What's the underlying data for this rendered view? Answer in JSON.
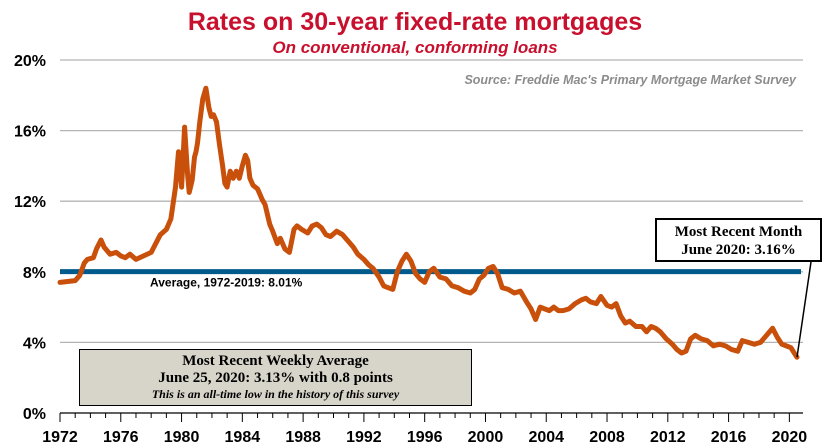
{
  "title": "Rates on 30-year fixed-rate mortgages",
  "subtitle": "On conventional, conforming loans",
  "source": "Source: Freddie Mac's Primary Mortgage Market Survey",
  "average_label": "Average, 1972-2019: 8.01%",
  "weekly_box": {
    "line1": "Most Recent Weekly Average",
    "line2": "June 25, 2020: 3.13% with 0.8 points",
    "line3": "This is an all-time low in the history of this survey"
  },
  "month_box": {
    "line1": "Most Recent Month",
    "line2": "June 2020: 3.16%"
  },
  "colors": {
    "series": "#c9500a",
    "average": "#005b8c",
    "title": "#c8102e",
    "grid": "#b4b4b4"
  },
  "chart_data": {
    "type": "line",
    "title": "Rates on 30-year fixed-rate mortgages",
    "subtitle": "On conventional, conforming loans",
    "xlabel": "",
    "ylabel": "",
    "xlim": [
      1972,
      2020.7
    ],
    "ylim": [
      0,
      20
    ],
    "x_ticks": [
      1972,
      1976,
      1980,
      1984,
      1988,
      1992,
      1996,
      2000,
      2004,
      2008,
      2012,
      2016,
      2020
    ],
    "x_tick_labels": [
      "1972",
      "1976",
      "1980",
      "1984",
      "1988",
      "1992",
      "1996",
      "2000",
      "2004",
      "2008",
      "2012",
      "2016",
      "2020"
    ],
    "y_ticks": [
      0,
      4,
      8,
      12,
      16,
      20
    ],
    "y_tick_labels": [
      "0%",
      "4%",
      "8%",
      "12%",
      "16%",
      "20%"
    ],
    "grid": "horizontal",
    "average": {
      "label": "Average, 1972-2019: 8.01%",
      "value": 8.01
    },
    "series": [
      {
        "x": [
          1972.0,
          1972.5,
          1973.0,
          1973.3,
          1973.6,
          1973.8,
          1974.2,
          1974.4,
          1974.7,
          1974.9,
          1975.3,
          1975.7,
          1976.0,
          1976.3,
          1976.6,
          1977.0,
          1977.5,
          1978.0,
          1978.3,
          1978.6,
          1979.0,
          1979.3,
          1979.6,
          1979.8,
          1980.0,
          1980.2,
          1980.4,
          1980.5,
          1980.7,
          1980.85,
          1980.95,
          1981.05,
          1981.2,
          1981.4,
          1981.6,
          1981.8,
          1981.95,
          1982.1,
          1982.3,
          1982.5,
          1982.7,
          1982.85,
          1983.0,
          1983.2,
          1983.4,
          1983.6,
          1983.8,
          1984.0,
          1984.2,
          1984.35,
          1984.5,
          1984.7,
          1985.0,
          1985.3,
          1985.5,
          1985.8,
          1986.0,
          1986.3,
          1986.5,
          1986.8,
          1987.1,
          1987.4,
          1987.6,
          1987.9,
          1988.3,
          1988.6,
          1988.9,
          1989.2,
          1989.5,
          1989.8,
          1990.2,
          1990.6,
          1991.0,
          1991.3,
          1991.6,
          1992.0,
          1992.3,
          1992.6,
          1993.0,
          1993.3,
          1993.6,
          1993.9,
          1994.2,
          1994.5,
          1994.8,
          1995.1,
          1995.4,
          1995.7,
          1996.0,
          1996.3,
          1996.6,
          1997.0,
          1997.4,
          1997.8,
          1998.2,
          1998.6,
          1999.0,
          1999.3,
          1999.6,
          1999.9,
          2000.2,
          2000.5,
          2000.8,
          2001.1,
          2001.5,
          2001.9,
          2002.3,
          2002.7,
          2003.0,
          2003.3,
          2003.6,
          2003.9,
          2004.2,
          2004.5,
          2004.8,
          2005.1,
          2005.5,
          2005.9,
          2006.3,
          2006.6,
          2006.9,
          2007.3,
          2007.6,
          2008.0,
          2008.3,
          2008.6,
          2008.9,
          2009.2,
          2009.5,
          2009.9,
          2010.3,
          2010.6,
          2010.9,
          2011.2,
          2011.5,
          2011.9,
          2012.3,
          2012.6,
          2012.9,
          2013.2,
          2013.5,
          2013.8,
          2014.2,
          2014.6,
          2015.0,
          2015.4,
          2015.8,
          2016.2,
          2016.6,
          2016.9,
          2017.3,
          2017.7,
          2018.1,
          2018.5,
          2018.9,
          2019.2,
          2019.5,
          2019.8,
          2020.1,
          2020.4,
          2020.5
        ],
        "values": [
          7.4,
          7.45,
          7.5,
          7.8,
          8.5,
          8.7,
          8.8,
          9.3,
          9.8,
          9.4,
          9.0,
          9.1,
          8.9,
          8.8,
          9.0,
          8.7,
          8.9,
          9.1,
          9.6,
          10.1,
          10.4,
          11.0,
          12.8,
          14.8,
          12.8,
          16.2,
          13.5,
          12.5,
          13.2,
          14.5,
          14.8,
          15.3,
          16.5,
          17.8,
          18.4,
          17.3,
          16.8,
          16.9,
          16.5,
          15.2,
          14.0,
          13.0,
          12.8,
          13.7,
          13.3,
          13.7,
          13.3,
          14.0,
          14.6,
          14.3,
          13.3,
          12.9,
          12.7,
          12.1,
          11.8,
          10.7,
          10.3,
          9.6,
          9.9,
          9.3,
          9.1,
          10.4,
          10.6,
          10.4,
          10.2,
          10.6,
          10.7,
          10.5,
          10.1,
          10.0,
          10.3,
          10.1,
          9.7,
          9.4,
          9.0,
          8.7,
          8.4,
          8.2,
          7.7,
          7.2,
          7.1,
          7.0,
          8.0,
          8.6,
          9.0,
          8.6,
          7.9,
          7.6,
          7.4,
          8.0,
          8.2,
          7.7,
          7.6,
          7.2,
          7.1,
          6.9,
          6.8,
          7.0,
          7.6,
          7.8,
          8.2,
          8.3,
          7.9,
          7.1,
          7.0,
          6.8,
          6.9,
          6.3,
          5.9,
          5.3,
          6.0,
          5.9,
          5.8,
          6.0,
          5.8,
          5.8,
          5.9,
          6.2,
          6.4,
          6.5,
          6.3,
          6.2,
          6.6,
          6.1,
          6.0,
          6.2,
          5.5,
          5.1,
          5.2,
          4.9,
          4.9,
          4.6,
          4.9,
          4.8,
          4.6,
          4.2,
          3.9,
          3.6,
          3.4,
          3.5,
          4.2,
          4.4,
          4.2,
          4.1,
          3.8,
          3.9,
          3.8,
          3.6,
          3.5,
          4.1,
          4.0,
          3.9,
          4.0,
          4.4,
          4.8,
          4.3,
          3.9,
          3.8,
          3.7,
          3.3,
          3.16
        ]
      }
    ]
  }
}
